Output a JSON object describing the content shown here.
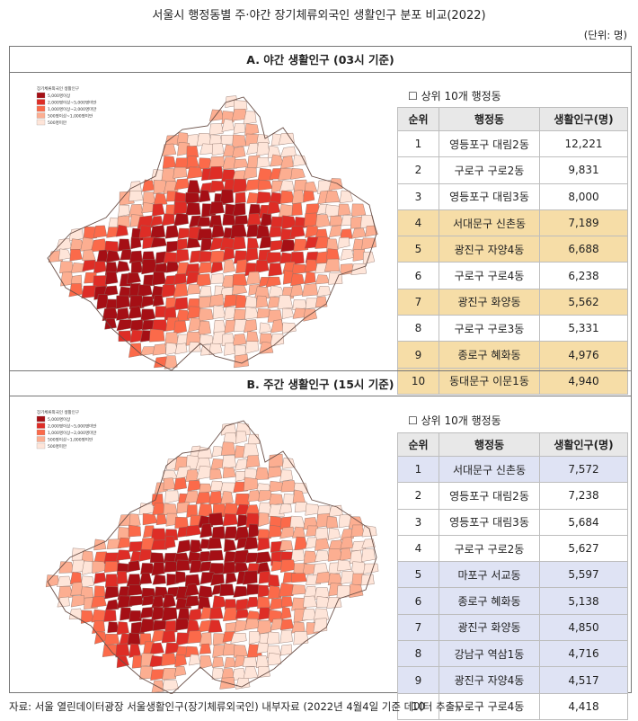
{
  "title": "서울시 행정동별 주·야간 장기체류외국인 생활인구 분포 비교(2022)",
  "unit_note": "(단위: 명)",
  "source": "자료: 서울 열린데이터광장 서울생활인구(장기체류외국인) 내부자료 (2022년 4월4일 기준 데이터 추출).",
  "colors": {
    "highlight_night": "#f6dda7",
    "highlight_day": "#dfe3f4",
    "choropleth": [
      "#a50f15",
      "#de2d26",
      "#fb6a4a",
      "#fcae91",
      "#fee5d9"
    ]
  },
  "legend": {
    "title": "장기체류외국인 생활인구",
    "items": [
      "5,000명이상",
      "2,000명이상~5,000명미만",
      "1,000명이상~2,000명미만",
      "500명이상~1,000명미만",
      "500명미만"
    ]
  },
  "chart_data": [
    {
      "type": "table",
      "panel_label": "A. 야간 생활인구 (03시 기준)",
      "subtitle": "☐ 상위 10개 행정동",
      "columns": [
        "순위",
        "행정동",
        "생활인구(명)"
      ],
      "rows": [
        {
          "rank": "1",
          "dong": "영등포구 대림2동",
          "pop": "12,221",
          "hl": false
        },
        {
          "rank": "2",
          "dong": "구로구 구로2동",
          "pop": "9,831",
          "hl": false
        },
        {
          "rank": "3",
          "dong": "영등포구 대림3동",
          "pop": "8,000",
          "hl": false
        },
        {
          "rank": "4",
          "dong": "서대문구 신촌동",
          "pop": "7,189",
          "hl": true
        },
        {
          "rank": "5",
          "dong": "광진구 자양4동",
          "pop": "6,688",
          "hl": true
        },
        {
          "rank": "6",
          "dong": "구로구 구로4동",
          "pop": "6,238",
          "hl": false
        },
        {
          "rank": "7",
          "dong": "광진구 화양동",
          "pop": "5,562",
          "hl": true
        },
        {
          "rank": "8",
          "dong": "구로구 구로3동",
          "pop": "5,331",
          "hl": false
        },
        {
          "rank": "9",
          "dong": "종로구 혜화동",
          "pop": "4,976",
          "hl": true
        },
        {
          "rank": "10",
          "dong": "동대문구 이문1동",
          "pop": "4,940",
          "hl": true
        }
      ]
    },
    {
      "type": "table",
      "panel_label": "B. 주간 생활인구 (15시 기준)",
      "subtitle": "☐ 상위 10개 행정동",
      "columns": [
        "순위",
        "행정동",
        "생활인구(명)"
      ],
      "rows": [
        {
          "rank": "1",
          "dong": "서대문구 신촌동",
          "pop": "7,572",
          "hl": true
        },
        {
          "rank": "2",
          "dong": "영등포구 대림2동",
          "pop": "7,238",
          "hl": false
        },
        {
          "rank": "3",
          "dong": "영등포구 대림3동",
          "pop": "5,684",
          "hl": false
        },
        {
          "rank": "4",
          "dong": "구로구 구로2동",
          "pop": "5,627",
          "hl": false
        },
        {
          "rank": "5",
          "dong": "마포구 서교동",
          "pop": "5,597",
          "hl": true
        },
        {
          "rank": "6",
          "dong": "종로구 혜화동",
          "pop": "5,138",
          "hl": true
        },
        {
          "rank": "7",
          "dong": "광진구 화양동",
          "pop": "4,850",
          "hl": true
        },
        {
          "rank": "8",
          "dong": "강남구 역삼1동",
          "pop": "4,716",
          "hl": true
        },
        {
          "rank": "9",
          "dong": "광진구 자양4동",
          "pop": "4,517",
          "hl": true
        },
        {
          "rank": "10",
          "dong": "구로구 구로4동",
          "pop": "4,418",
          "hl": false
        }
      ]
    }
  ]
}
